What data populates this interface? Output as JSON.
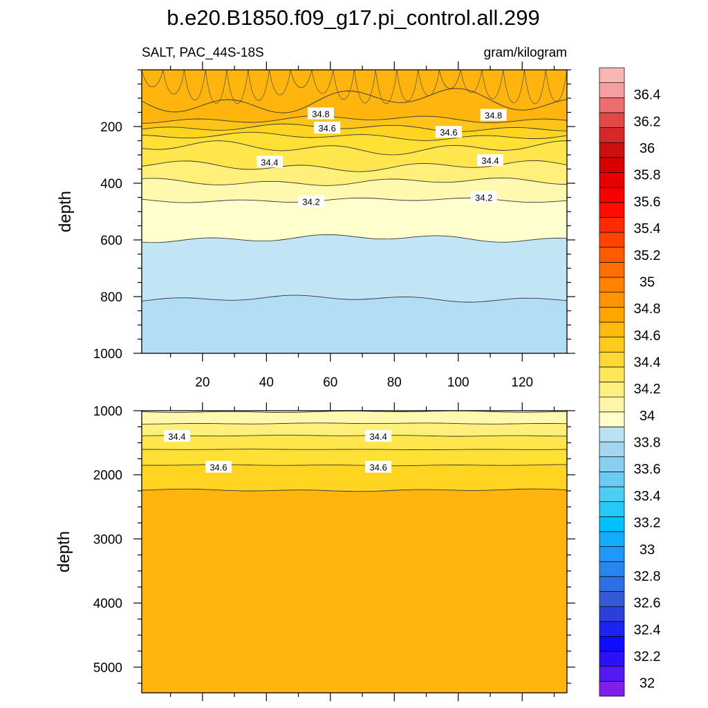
{
  "chart_data": [
    {
      "type": "heatmap",
      "title": "b.e20.B1850.f09_g17.pi_control.all.299",
      "subtitle_left": "SALT, PAC_44S-18S",
      "subtitle_right": "gram/kilogram",
      "ylabel": "depth",
      "xlabel": "",
      "xlim": [
        1,
        134
      ],
      "ylim": [
        1000,
        0
      ],
      "xticks": [
        20,
        40,
        60,
        80,
        100,
        120
      ],
      "yticks": [
        200,
        400,
        600,
        800,
        1000
      ],
      "contour_interval": 0.1,
      "isohaline_depths": [
        {
          "value": 34.9,
          "depth_range": [
            60,
            160
          ]
        },
        {
          "value": 34.8,
          "depth_range": [
            160,
            190
          ]
        },
        {
          "value": 34.7,
          "depth_range": [
            190,
            220
          ]
        },
        {
          "value": 34.6,
          "depth_range": [
            220,
            250
          ]
        },
        {
          "value": 34.5,
          "depth_range": [
            250,
            300
          ]
        },
        {
          "value": 34.4,
          "depth_range": [
            320,
            360
          ]
        },
        {
          "value": 34.3,
          "depth_range": [
            380,
            410
          ]
        },
        {
          "value": 34.2,
          "depth_range": [
            450,
            470
          ]
        },
        {
          "value": 34.1,
          "depth_range": [
            580,
            610
          ]
        },
        {
          "value": 34.1,
          "depth_range": [
            795,
            820
          ]
        }
      ],
      "contour_labels": [
        {
          "text": "34.8",
          "x": 57,
          "depth": 155
        },
        {
          "text": "34.8",
          "x": 111,
          "depth": 160
        },
        {
          "text": "34.6",
          "x": 59,
          "depth": 205
        },
        {
          "text": "34.6",
          "x": 97,
          "depth": 220
        },
        {
          "text": "34.4",
          "x": 41,
          "depth": 325
        },
        {
          "text": "34.4",
          "x": 110,
          "depth": 320
        },
        {
          "text": "34.2",
          "x": 54,
          "depth": 465
        },
        {
          "text": "34.2",
          "x": 108,
          "depth": 450
        }
      ]
    },
    {
      "type": "heatmap",
      "ylabel": "depth",
      "xlabel": "",
      "xlim": [
        1,
        134
      ],
      "ylim": [
        5400,
        1000
      ],
      "yticks": [
        1000,
        2000,
        3000,
        4000,
        5000
      ],
      "contour_interval": 0.1,
      "isohaline_depths": [
        {
          "value": 34.3,
          "depth_range": [
            1000,
            1030
          ]
        },
        {
          "value": 34.4,
          "depth_range": [
            1190,
            1210
          ]
        },
        {
          "value": 34.5,
          "depth_range": [
            1380,
            1400
          ]
        },
        {
          "value": 34.6,
          "depth_range": [
            1600,
            1610
          ]
        },
        {
          "value": 34.7,
          "depth_range": [
            1840,
            1860
          ]
        },
        {
          "value": 34.8,
          "depth_range": [
            2220,
            2260
          ]
        }
      ],
      "contour_labels": [
        {
          "text": "34.4",
          "x": 12,
          "depth": 1400
        },
        {
          "text": "34.4",
          "x": 75,
          "depth": 1400
        },
        {
          "text": "34.6",
          "x": 25,
          "depth": 1880
        },
        {
          "text": "34.6",
          "x": 75,
          "depth": 1880
        }
      ]
    }
  ],
  "colorbar": {
    "min": 31.9,
    "max": 36.6,
    "step": 0.1,
    "tick_labels": [
      "36.4",
      "36.2",
      "36",
      "35.8",
      "35.6",
      "35.4",
      "35.2",
      "35",
      "34.8",
      "34.6",
      "34.4",
      "34.2",
      "34",
      "33.8",
      "33.6",
      "33.4",
      "33.2",
      "33",
      "32.8",
      "32.6",
      "32.4",
      "32.2",
      "32"
    ],
    "colors": [
      "#7f1fe9",
      "#5519f4",
      "#2b11fa",
      "#100dff",
      "#1a26f0",
      "#2a3fdc",
      "#345ad6",
      "#2f6fe3",
      "#2a85ee",
      "#1f98f7",
      "#12adfe",
      "#00c0fc",
      "#25c9f6",
      "#4dcdf4",
      "#6ccbf4",
      "#89cdf0",
      "#a3d6f0",
      "#bbe2f3",
      "#ffffcc",
      "#fff5a8",
      "#fff082",
      "#ffe65a",
      "#ffd933",
      "#ffcc1e",
      "#ffba0d",
      "#ffa500",
      "#ff9400",
      "#ff8200",
      "#ff6e00",
      "#ff5a00",
      "#ff4400",
      "#ff2a00",
      "#ff0e00",
      "#f70000",
      "#e60000",
      "#d80000",
      "#cc1010",
      "#d62828",
      "#e24848",
      "#ec6e6e",
      "#f3a0a0",
      "#fab5b5"
    ],
    "fill_colors": {
      "34.0": "#b2def5",
      "34.1": "#c2e5f6",
      "34.2": "#ffffce",
      "34.3": "#fff8ae",
      "34.4": "#fff07c",
      "34.5": "#ffe64c",
      "34.6": "#ffe035",
      "34.7": "#ffd521",
      "34.8": "#ffc41a",
      "34.9": "#ffb40e"
    }
  }
}
